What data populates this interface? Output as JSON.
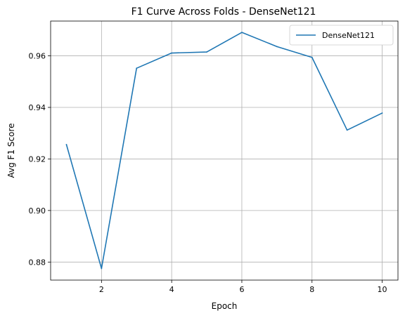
{
  "chart_data": {
    "type": "line",
    "title": "F1 Curve Across Folds - DenseNet121",
    "xlabel": "Epoch",
    "ylabel": "Avg F1 Score",
    "xlim": [
      0.55,
      10.45
    ],
    "ylim": [
      0.873,
      0.9735
    ],
    "xticks": [
      2,
      4,
      6,
      8,
      10
    ],
    "xtick_labels": [
      "2",
      "4",
      "6",
      "8",
      "10"
    ],
    "yticks": [
      0.88,
      0.9,
      0.92,
      0.94,
      0.96
    ],
    "ytick_labels": [
      "0.88",
      "0.90",
      "0.92",
      "0.94",
      "0.96"
    ],
    "grid": true,
    "legend_position": "top-right",
    "series": [
      {
        "name": "DenseNet121",
        "color": "#1f77b4",
        "x": [
          1,
          2,
          3,
          4,
          5,
          6,
          7,
          8,
          9,
          10
        ],
        "y": [
          0.9256,
          0.8775,
          0.9552,
          0.9611,
          0.9615,
          0.9691,
          0.9636,
          0.9594,
          0.9312,
          0.9378
        ]
      }
    ]
  }
}
